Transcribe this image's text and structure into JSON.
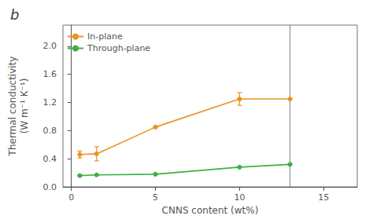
{
  "chart_data": {
    "type": "line",
    "title": "b",
    "x_label": "CNNS content (wt%)",
    "y_label": "Thermal conductivity\n(W m⁻¹ K⁻¹)",
    "xlim": [
      -0.5,
      17
    ],
    "ylim": [
      0.0,
      2.3
    ],
    "xticks": [
      0,
      5,
      10,
      15
    ],
    "yticks": [
      {
        "value": 0.0,
        "label": "0.0"
      },
      0.4,
      0.8,
      1.2,
      1.6,
      {
        "value": 2.0,
        "label": "2.0"
      }
    ],
    "grid": false,
    "legend": "upper left",
    "marker": "circle",
    "series": [
      {
        "name": "In-plane",
        "color": "#E8951E",
        "x": [
          0.5,
          1.5,
          5,
          10,
          13
        ],
        "values": [
          0.46,
          0.47,
          0.85,
          1.25,
          1.25
        ],
        "yerr": [
          0.05,
          0.1,
          0.0,
          0.09,
          0.0
        ]
      },
      {
        "name": "Through-plane",
        "color": "#3CB043",
        "x": [
          0.5,
          1.5,
          5,
          10,
          13
        ],
        "values": [
          0.16,
          0.17,
          0.18,
          0.28,
          0.32
        ],
        "yerr": [
          0.0,
          0.0,
          0.0,
          0.0,
          0.0
        ]
      }
    ],
    "reference_lines": [
      {
        "x": 13,
        "color": "#888888"
      }
    ]
  }
}
